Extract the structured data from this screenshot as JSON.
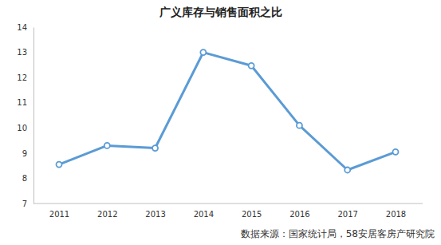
{
  "chart_data": {
    "type": "line",
    "title": "广义库存与销售面积之比",
    "categories": [
      "2011",
      "2012",
      "2013",
      "2014",
      "2015",
      "2016",
      "2017",
      "2018"
    ],
    "values": [
      8.55,
      9.3,
      9.2,
      13.0,
      12.47,
      10.1,
      8.33,
      9.05
    ],
    "color": "#5b9bd5",
    "marker": "circle",
    "ylim": [
      7,
      14
    ],
    "yticks": [
      7,
      8,
      9,
      10,
      11,
      12,
      13,
      14
    ],
    "grid": false,
    "annotations": [
      "数据来源：国家统计局，58安居客房产研究院"
    ]
  }
}
